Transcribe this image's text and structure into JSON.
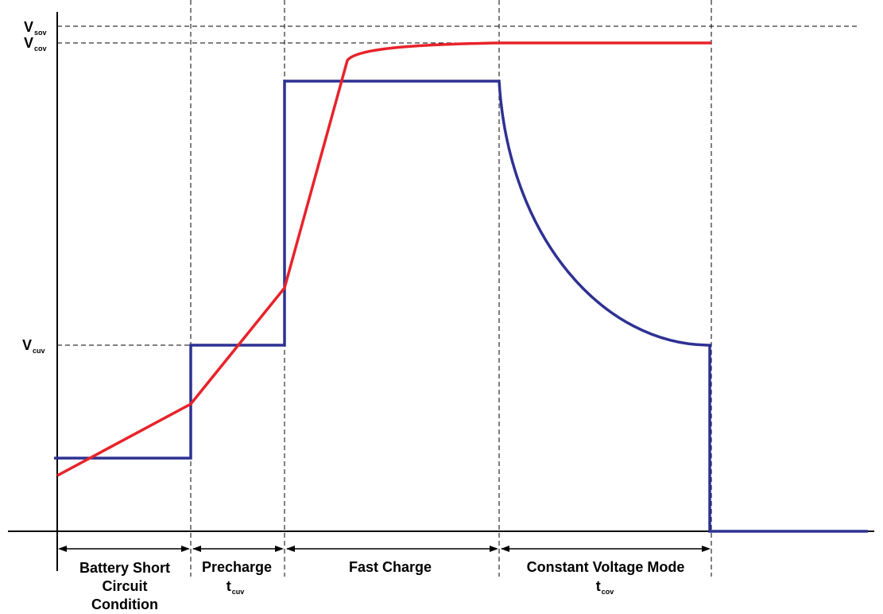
{
  "voltage_labels": {
    "v_sov": {
      "main": "V",
      "sub": "sov"
    },
    "v_cov": {
      "main": "V",
      "sub": "cov"
    },
    "v_cuv": {
      "main": "V",
      "sub": "cuv"
    }
  },
  "phases": [
    {
      "lines": [
        "Battery Short",
        "Circuit",
        "Condition"
      ]
    },
    {
      "lines": [
        "Precharge"
      ],
      "time": {
        "main": "t",
        "sub": "cuv"
      }
    },
    {
      "lines": [
        "Fast Charge"
      ]
    },
    {
      "lines": [
        "Constant Voltage Mode"
      ],
      "time": {
        "main": "t",
        "sub": "cov"
      }
    }
  ],
  "colors": {
    "voltage_curve": "#e8232a",
    "current_curve": "#2e3192",
    "axes": "#000000"
  }
}
